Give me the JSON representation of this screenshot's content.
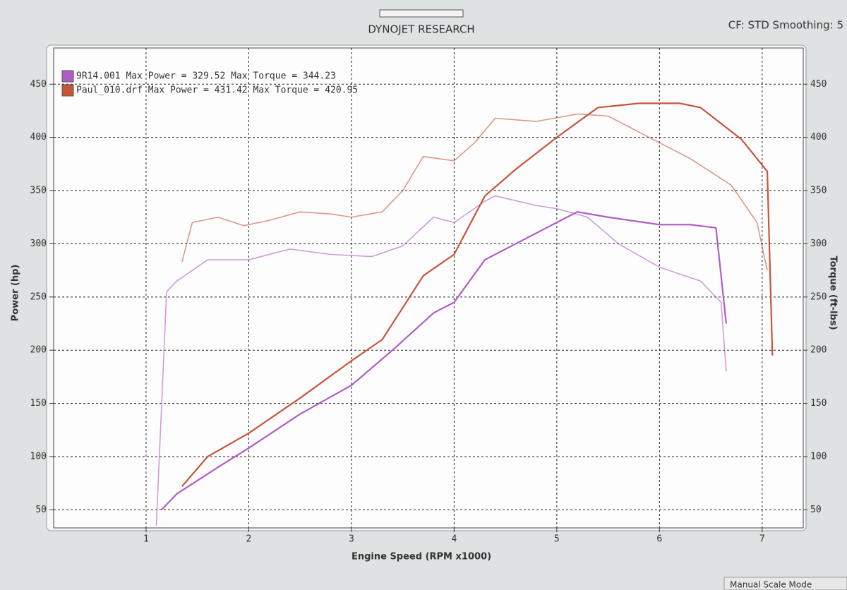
{
  "chart_data": {
    "type": "line",
    "title": "DYNOJET RESEARCH",
    "settings_text": "CF: STD  Smoothing: 5",
    "status_text": "Manual Scale Mode",
    "x_label": "Engine Speed (RPM x1000)",
    "y_label": "Power (hp)",
    "y2_label": "Torque (ft-lbs)",
    "xlim": [
      0.1,
      7.4
    ],
    "xticks": [
      1,
      2,
      3,
      4,
      5,
      6,
      7
    ],
    "ylim": [
      33,
      484
    ],
    "yticks": [
      50,
      100,
      150,
      200,
      250,
      300,
      350,
      400,
      450
    ],
    "y2lim": [
      33,
      484
    ],
    "y2ticks": [
      50,
      100,
      150,
      200,
      250,
      300,
      350,
      400,
      450
    ],
    "grid": true,
    "legend": "top-left",
    "series": [
      {
        "name": "9R14.001 Max Power = 329.52 Max Torque = 344.23",
        "color": "#b05cc8",
        "power": {
          "x": [
            1.15,
            1.3,
            1.7,
            2.0,
            2.5,
            3.0,
            3.4,
            3.8,
            4.0,
            4.3,
            4.6,
            5.0,
            5.2,
            5.5,
            6.0,
            6.3,
            6.55,
            6.65
          ],
          "values": [
            50,
            65,
            90,
            108,
            140,
            167,
            200,
            235,
            245,
            285,
            300,
            320,
            330,
            325,
            318,
            318,
            315,
            225
          ]
        },
        "torque": {
          "axis": "y2",
          "x": [
            1.1,
            1.2,
            1.3,
            1.6,
            2.0,
            2.4,
            2.8,
            3.2,
            3.5,
            3.8,
            4.0,
            4.3,
            4.4,
            4.8,
            5.0,
            5.3,
            5.6,
            6.0,
            6.4,
            6.6,
            6.65
          ],
          "values": [
            35,
            255,
            265,
            285,
            285,
            295,
            290,
            288,
            298,
            325,
            320,
            340,
            345,
            336,
            333,
            325,
            300,
            278,
            265,
            245,
            180
          ]
        }
      },
      {
        "name": "Paul_010.drf Max Power = 431.42 Max Torque = 420.95",
        "color": "#c8553a",
        "power": {
          "x": [
            1.35,
            1.6,
            2.0,
            2.5,
            3.0,
            3.3,
            3.7,
            4.0,
            4.3,
            4.6,
            5.0,
            5.4,
            5.8,
            6.2,
            6.4,
            6.8,
            7.05,
            7.1
          ],
          "values": [
            72,
            100,
            122,
            155,
            190,
            210,
            270,
            290,
            345,
            370,
            400,
            428,
            432,
            432,
            428,
            398,
            368,
            195
          ]
        },
        "torque": {
          "axis": "y2",
          "x": [
            1.35,
            1.45,
            1.7,
            1.95,
            2.2,
            2.5,
            2.8,
            3.0,
            3.3,
            3.5,
            3.7,
            4.0,
            4.2,
            4.4,
            4.8,
            5.2,
            5.5,
            5.9,
            6.3,
            6.7,
            6.95,
            7.05
          ],
          "values": [
            283,
            320,
            325,
            317,
            322,
            330,
            328,
            325,
            330,
            350,
            382,
            378,
            395,
            418,
            415,
            422,
            420,
            400,
            380,
            355,
            320,
            275
          ]
        }
      }
    ]
  }
}
